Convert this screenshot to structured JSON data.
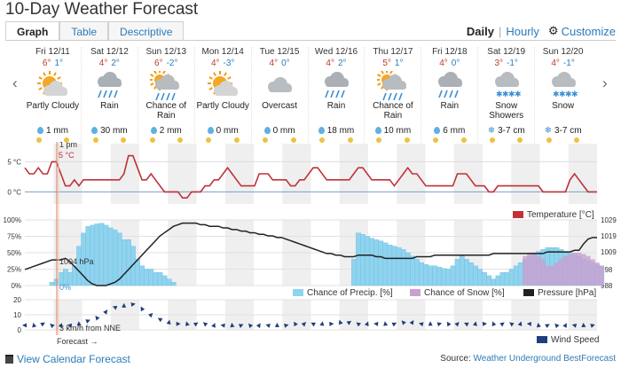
{
  "page_title": "10-Day Weather Forecast",
  "tabs": [
    {
      "label": "Graph",
      "active": true
    },
    {
      "label": "Table",
      "active": false
    },
    {
      "label": "Descriptive",
      "active": false
    }
  ],
  "view_toggle": {
    "daily": "Daily",
    "hourly": "Hourly",
    "customize": "Customize"
  },
  "days": [
    {
      "date": "Fri 12/11",
      "hi": "6°",
      "lo": "1°",
      "condition": "Partly Cloudy",
      "icon": "partly-cloudy",
      "precip": "1 mm",
      "precip_icon": "drop"
    },
    {
      "date": "Sat 12/12",
      "hi": "4°",
      "lo": "2°",
      "condition": "Rain",
      "icon": "rain",
      "precip": "30 mm",
      "precip_icon": "drop"
    },
    {
      "date": "Sun 12/13",
      "hi": "6°",
      "lo": "-2°",
      "condition": "Chance of Rain",
      "icon": "chance-rain",
      "precip": "2 mm",
      "precip_icon": "drop"
    },
    {
      "date": "Mon 12/14",
      "hi": "4°",
      "lo": "-3°",
      "condition": "Partly Cloudy",
      "icon": "partly-cloudy",
      "precip": "0 mm",
      "precip_icon": "drop"
    },
    {
      "date": "Tue 12/15",
      "hi": "4°",
      "lo": "0°",
      "condition": "Overcast",
      "icon": "overcast",
      "precip": "0 mm",
      "precip_icon": "drop"
    },
    {
      "date": "Wed 12/16",
      "hi": "4°",
      "lo": "2°",
      "condition": "Rain",
      "icon": "rain",
      "precip": "18 mm",
      "precip_icon": "drop"
    },
    {
      "date": "Thu 12/17",
      "hi": "5°",
      "lo": "1°",
      "condition": "Chance of Rain",
      "icon": "chance-rain",
      "precip": "10 mm",
      "precip_icon": "drop"
    },
    {
      "date": "Fri 12/18",
      "hi": "4°",
      "lo": "0°",
      "condition": "Rain",
      "icon": "rain",
      "precip": "6 mm",
      "precip_icon": "drop"
    },
    {
      "date": "Sat 12/19",
      "hi": "3°",
      "lo": "-1°",
      "condition": "Snow Showers",
      "icon": "snow",
      "precip": "3-7 cm",
      "precip_icon": "flake"
    },
    {
      "date": "Sun 12/20",
      "hi": "4°",
      "lo": "-1°",
      "condition": "Snow",
      "icon": "snow",
      "precip": "3-7 cm",
      "precip_icon": "flake"
    }
  ],
  "cursor": {
    "time_label": "1 pm",
    "temp_readout": "5 °C",
    "pressure_readout": "1004 hPa",
    "precip_readout": "0%",
    "wind_readout": "3 km/h from NNE"
  },
  "forecast_label": "Forecast →",
  "colors": {
    "temperature": "#c0313a",
    "precip": "#8fd3ee",
    "snow": "#c9a0d0",
    "pressure": "#222222",
    "wind": "#1d3f7a"
  },
  "chart_data": [
    {
      "type": "line",
      "legend": [
        "Temperature [°C]"
      ],
      "y_tick_labels": [
        "5 °C",
        "0 °C"
      ],
      "ylim": [
        -2,
        8
      ],
      "series": [
        {
          "name": "Temperature [°C]",
          "values": [
            4,
            3,
            3,
            4,
            3,
            3,
            5,
            5,
            3,
            1,
            1,
            2,
            1,
            2,
            2,
            2,
            2,
            2,
            2,
            2,
            2,
            2,
            3,
            6,
            6,
            4,
            2,
            2,
            3,
            2,
            1,
            0,
            0,
            0,
            0,
            -1,
            -1,
            0,
            0,
            0,
            1,
            1,
            2,
            2,
            3,
            4,
            3,
            2,
            1,
            1,
            1,
            1,
            3,
            3,
            3,
            2,
            2,
            2,
            2,
            1,
            1,
            2,
            2,
            3,
            4,
            4,
            3,
            2,
            2,
            2,
            2,
            2,
            2,
            3,
            4,
            4,
            3,
            2,
            2,
            2,
            2,
            2,
            1,
            2,
            3,
            4,
            3,
            3,
            2,
            1,
            1,
            1,
            1,
            1,
            1,
            1,
            3,
            3,
            3,
            2,
            1,
            1,
            1,
            0,
            0,
            1,
            1,
            1,
            1,
            1,
            1,
            1,
            1,
            1,
            1,
            0,
            0,
            0,
            0,
            0,
            0,
            2,
            3,
            2,
            1,
            0,
            0,
            0
          ]
        }
      ]
    },
    {
      "type": "area",
      "legend": [
        "Chance of Precip. [%]",
        "Chance of Snow [%]",
        "Pressure [hPa]"
      ],
      "y_tick_labels_left": [
        "100%",
        "75%",
        "50%",
        "25%",
        "0%"
      ],
      "y_tick_labels_right": [
        "1029",
        "1019",
        "1009",
        "998",
        "988"
      ],
      "ylim_left": [
        0,
        100
      ],
      "ylim_right": [
        988,
        1029
      ],
      "series": [
        {
          "name": "Chance of Precip. [%]",
          "values": [
            0,
            0,
            0,
            0,
            0,
            0,
            5,
            10,
            20,
            25,
            20,
            30,
            60,
            80,
            90,
            92,
            94,
            95,
            92,
            88,
            85,
            80,
            70,
            70,
            60,
            40,
            30,
            25,
            25,
            20,
            20,
            15,
            10,
            5,
            0,
            0,
            0,
            0,
            0,
            0,
            0,
            0,
            0,
            0,
            0,
            0,
            0,
            0,
            0,
            0,
            0,
            0,
            0,
            0,
            0,
            0,
            0,
            0,
            0,
            0,
            0,
            0,
            0,
            0,
            0,
            0,
            0,
            0,
            0,
            0,
            0,
            0,
            0,
            40,
            80,
            78,
            75,
            72,
            70,
            68,
            65,
            62,
            60,
            58,
            55,
            50,
            45,
            40,
            35,
            32,
            30,
            30,
            28,
            26,
            25,
            30,
            40,
            45,
            40,
            35,
            30,
            25,
            20,
            15,
            10,
            15,
            20,
            20,
            25,
            30,
            35,
            40,
            45,
            50,
            52,
            55,
            58,
            58,
            58,
            55,
            52,
            50,
            48,
            45,
            40,
            38,
            35,
            32,
            30
          ]
        },
        {
          "name": "Chance of Snow [%]",
          "values": [
            0,
            0,
            0,
            0,
            0,
            0,
            0,
            0,
            0,
            0,
            0,
            0,
            0,
            0,
            0,
            0,
            0,
            0,
            0,
            0,
            0,
            0,
            0,
            0,
            0,
            0,
            0,
            0,
            0,
            0,
            0,
            0,
            0,
            0,
            0,
            0,
            0,
            0,
            0,
            0,
            0,
            0,
            0,
            0,
            0,
            0,
            0,
            0,
            0,
            0,
            0,
            0,
            0,
            0,
            0,
            0,
            0,
            0,
            0,
            0,
            0,
            0,
            0,
            0,
            0,
            0,
            0,
            0,
            0,
            0,
            0,
            0,
            0,
            0,
            0,
            0,
            0,
            0,
            0,
            0,
            0,
            0,
            0,
            0,
            0,
            0,
            0,
            0,
            0,
            0,
            0,
            0,
            0,
            0,
            0,
            0,
            0,
            0,
            0,
            0,
            0,
            0,
            0,
            0,
            0,
            0,
            0,
            0,
            0,
            0,
            0,
            45,
            50,
            50,
            45,
            40,
            30,
            30,
            35,
            40,
            45,
            48,
            50,
            50,
            48,
            45,
            40,
            35,
            30
          ]
        },
        {
          "name": "Pressure [hPa]",
          "values": [
            998,
            999,
            1000,
            1001,
            1002,
            1003,
            1004,
            1004,
            1004,
            1005,
            1003,
            1000,
            997,
            994,
            991,
            989,
            988,
            988,
            988,
            989,
            990,
            992,
            995,
            998,
            1001,
            1004,
            1007,
            1010,
            1013,
            1016,
            1019,
            1021,
            1023,
            1025,
            1026,
            1027,
            1027,
            1027,
            1027,
            1026,
            1026,
            1025,
            1025,
            1025,
            1024,
            1024,
            1023,
            1023,
            1022,
            1022,
            1021,
            1021,
            1020,
            1020,
            1019,
            1019,
            1018,
            1018,
            1017,
            1016,
            1015,
            1014,
            1013,
            1012,
            1011,
            1010,
            1009,
            1008,
            1008,
            1007,
            1007,
            1006,
            1006,
            1006,
            1007,
            1007,
            1007,
            1007,
            1006,
            1006,
            1005,
            1005,
            1005,
            1005,
            1005,
            1005,
            1005,
            1006,
            1006,
            1006,
            1006,
            1007,
            1007,
            1007,
            1007,
            1007,
            1007,
            1007,
            1007,
            1007,
            1007,
            1007,
            1007,
            1007,
            1008,
            1008,
            1008,
            1008,
            1008,
            1008,
            1008,
            1008,
            1008,
            1008,
            1008,
            1008,
            1009,
            1009,
            1009,
            1009,
            1009,
            1009,
            1010,
            1010,
            1014,
            1017,
            1018,
            1018
          ]
        }
      ]
    },
    {
      "type": "line",
      "legend": [
        "Wind Speed"
      ],
      "y_tick_labels": [
        "20",
        "10",
        "0"
      ],
      "ylim": [
        0,
        20
      ],
      "series": [
        {
          "name": "Wind Speed",
          "values": [
            3,
            3,
            3,
            3,
            4,
            3,
            3,
            3,
            3,
            3,
            3,
            3,
            4,
            5,
            6,
            7,
            8,
            10,
            12,
            14,
            15,
            16,
            16,
            17,
            17,
            16,
            14,
            12,
            10,
            8,
            7,
            6,
            5,
            5,
            4,
            4,
            4,
            4,
            4,
            4,
            4,
            3,
            3,
            3,
            3,
            3,
            3,
            3,
            3,
            3,
            3,
            3,
            3,
            3,
            3,
            3,
            3,
            3,
            3,
            3,
            4,
            4,
            4,
            4,
            4,
            4,
            4,
            4,
            4,
            4,
            5,
            5,
            5,
            4,
            4,
            4,
            4,
            4,
            4,
            4,
            4,
            4,
            4,
            5,
            5,
            5,
            5,
            5,
            4,
            4,
            4,
            4,
            4,
            4,
            4,
            4,
            4,
            4,
            4,
            4,
            4,
            4,
            4,
            4,
            4,
            4,
            4,
            4,
            4,
            4,
            4,
            4,
            4,
            3,
            3,
            3,
            3,
            3,
            3,
            3,
            3,
            3,
            3,
            3,
            3,
            3,
            3,
            3
          ]
        }
      ]
    }
  ],
  "footer": {
    "calendar_link": "View Calendar Forecast",
    "source_prefix": "Source:",
    "source_name": "Weather Underground BestForecast"
  }
}
